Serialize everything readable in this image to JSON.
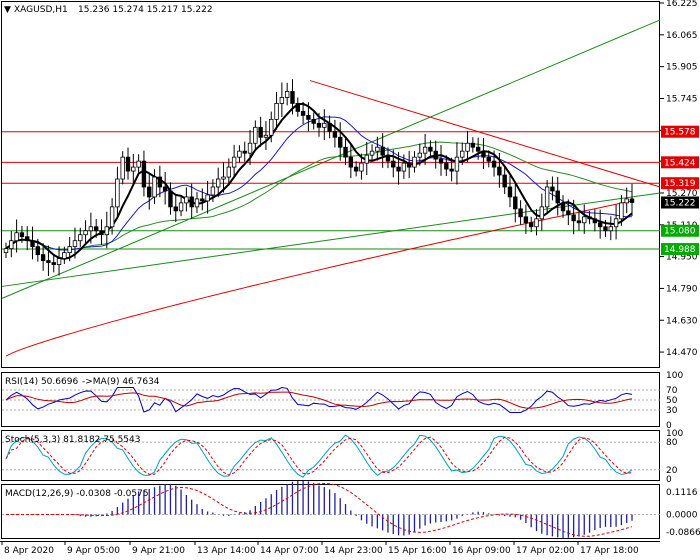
{
  "header": {
    "symbol": "XAGUSD,H1",
    "ohlc": "15.236 15.274 15.217 15.222"
  },
  "rsi": {
    "title": "RSI(14) 50.6696",
    "ma_title": "->MA(9) 46.7634"
  },
  "stoch": {
    "title": "Stoch(5,3,3) 81.8182 75.5543"
  },
  "macd": {
    "title": "MACD(12,26,9) -0.0308 -0.0575"
  },
  "colors": {
    "candle": "#000000",
    "ma_fast": "#000000",
    "ma_mid": "#1b1bd0",
    "ma_slow": "#2a8a2a",
    "ma_200": "#e00000",
    "level": "#e00000",
    "trend_green": "#1a8a1a",
    "badge_red": "#e00000",
    "badge_green": "#00aa00",
    "stoch_main": "#00a0c0",
    "stoch_signal": "#e00000",
    "rsi_line": "#0000c8",
    "rsi_ma": "#c00000",
    "macd_hist": "#2020a0",
    "macd_signal": "#e00000"
  },
  "chart_data": [
    {
      "type": "candlestick",
      "title": "XAGUSD,H1",
      "x_ticks": [
        "8 Apr 2020",
        "9 Apr 05:00",
        "9 Apr 21:00",
        "13 Apr 14:00",
        "14 Apr 07:00",
        "14 Apr 23:00",
        "15 Apr 16:00",
        "16 Apr 09:00",
        "17 Apr 02:00",
        "17 Apr 18:00"
      ],
      "y_ticks": [
        14.47,
        14.63,
        14.79,
        14.95,
        15.11,
        15.27,
        15.43,
        15.585,
        15.745,
        15.905,
        16.065,
        16.225
      ],
      "ylim": [
        14.4,
        16.225
      ],
      "levels": [
        {
          "price": 15.578,
          "label": "15.578",
          "color": "red"
        },
        {
          "price": 15.424,
          "label": "15.424",
          "color": "red"
        },
        {
          "price": 15.319,
          "label": "15.319",
          "color": "red"
        },
        {
          "price": 15.08,
          "label": "15.080",
          "color": "green"
        },
        {
          "price": 14.988,
          "label": "14.988",
          "color": "green"
        }
      ],
      "current_price": {
        "price": 15.222,
        "label": "15.222"
      },
      "closes": [
        14.99,
        15.03,
        15.07,
        15.05,
        15.03,
        15.0,
        14.96,
        14.93,
        14.92,
        14.91,
        14.94,
        14.97,
        15.0,
        15.03,
        15.06,
        15.08,
        15.1,
        15.08,
        15.06,
        15.1,
        15.2,
        15.34,
        15.45,
        15.38,
        15.4,
        15.43,
        15.3,
        15.25,
        15.35,
        15.3,
        15.28,
        15.2,
        15.18,
        15.22,
        15.25,
        15.2,
        15.24,
        15.23,
        15.26,
        15.3,
        15.34,
        15.35,
        15.4,
        15.45,
        15.48,
        15.47,
        15.52,
        15.6,
        15.55,
        15.56,
        15.64,
        15.72,
        15.75,
        15.78,
        15.72,
        15.68,
        15.66,
        15.64,
        15.62,
        15.6,
        15.62,
        15.58,
        15.55,
        15.5,
        15.45,
        15.4,
        15.38,
        15.42,
        15.46,
        15.48,
        15.5,
        15.46,
        15.43,
        15.4,
        15.38,
        15.42,
        15.4,
        15.45,
        15.47,
        15.5,
        15.48,
        15.44,
        15.42,
        15.39,
        15.38,
        15.45,
        15.48,
        15.52,
        15.5,
        15.48,
        15.45,
        15.43,
        15.4,
        15.36,
        15.3,
        15.25,
        15.19,
        15.15,
        15.12,
        15.1,
        15.14,
        15.2,
        15.3,
        15.28,
        15.22,
        15.18,
        15.16,
        15.13,
        15.12,
        15.15,
        15.14,
        15.12,
        15.1,
        15.08,
        15.1,
        15.14,
        15.22,
        15.24,
        15.222
      ],
      "rsi": {
        "ylim": [
          0,
          100
        ],
        "levels": [
          30,
          50,
          70
        ],
        "ticks": [
          100,
          70,
          50,
          30,
          0
        ]
      },
      "stoch": {
        "ylim": [
          0,
          100
        ],
        "levels": [
          20,
          80
        ],
        "ticks": [
          100,
          80,
          20,
          0
        ]
      },
      "macd": {
        "ticks": [
          0.1116,
          0.0,
          -0.0866
        ]
      }
    }
  ]
}
